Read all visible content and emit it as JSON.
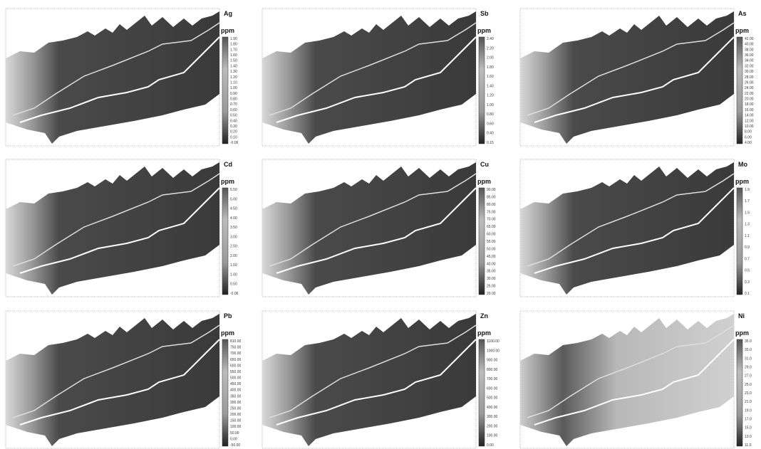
{
  "panels": [
    {
      "element": "Ag",
      "unit": "ppm",
      "ticks": [
        "1.90",
        "1.80",
        "1.70",
        "1.60",
        "1.50",
        "1.40",
        "1.30",
        "1.20",
        "1.10",
        "1.00",
        "0.90",
        "0.80",
        "0.70",
        "0.60",
        "0.50",
        "0.40",
        "0.30",
        "0.20",
        "0.10",
        "-0.06"
      ]
    },
    {
      "element": "Sb",
      "unit": "ppm",
      "ticks": [
        "2.40",
        "2.20",
        "2.00",
        "1.80",
        "1.60",
        "1.40",
        "1.20",
        "1.00",
        "0.80",
        "0.60",
        "0.40",
        "0.15"
      ]
    },
    {
      "element": "As",
      "unit": "ppm",
      "ticks": [
        "42.00",
        "40.00",
        "38.00",
        "36.00",
        "34.00",
        "32.00",
        "30.00",
        "28.00",
        "26.00",
        "24.00",
        "22.00",
        "20.00",
        "18.00",
        "16.00",
        "14.00",
        "12.00",
        "10.00",
        "8.00",
        "6.00",
        "4.00"
      ]
    },
    {
      "element": "Cd",
      "unit": "ppm",
      "ticks": [
        "5.50",
        "5.00",
        "4.50",
        "4.00",
        "3.50",
        "3.00",
        "2.50",
        "2.00",
        "1.50",
        "1.00",
        "0.50",
        "-0.06"
      ]
    },
    {
      "element": "Cu",
      "unit": "ppm",
      "ticks": [
        "90.00",
        "85.00",
        "80.00",
        "75.00",
        "70.00",
        "65.00",
        "60.00",
        "55.00",
        "50.00",
        "45.00",
        "40.00",
        "35.00",
        "30.00",
        "25.00",
        "20.00"
      ]
    },
    {
      "element": "Mo",
      "unit": "ppm",
      "ticks": [
        "1.9",
        "1.7",
        "1.5",
        "1.3",
        "1.1",
        "0.9",
        "0.7",
        "0.5",
        "0.3",
        "0.1"
      ]
    },
    {
      "element": "Pb",
      "unit": "ppm",
      "ticks": [
        "810.00",
        "750.00",
        "700.00",
        "650.00",
        "600.00",
        "550.00",
        "500.00",
        "450.00",
        "400.00",
        "350.00",
        "300.00",
        "250.00",
        "200.00",
        "150.00",
        "100.00",
        "50.00",
        "0.00",
        "-50.00"
      ]
    },
    {
      "element": "Zn",
      "unit": "ppm",
      "ticks": [
        "1100.00",
        "1000.00",
        "900.00",
        "800.00",
        "700.00",
        "600.00",
        "500.00",
        "400.00",
        "300.00",
        "200.00",
        "100.00",
        "0.00"
      ]
    },
    {
      "element": "Ni",
      "unit": "ppm",
      "ticks": [
        "35.0",
        "33.0",
        "31.0",
        "29.0",
        "27.0",
        "25.0",
        "23.0",
        "21.0",
        "19.0",
        "17.0",
        "15.0",
        "13.0",
        "11.0"
      ]
    }
  ]
}
